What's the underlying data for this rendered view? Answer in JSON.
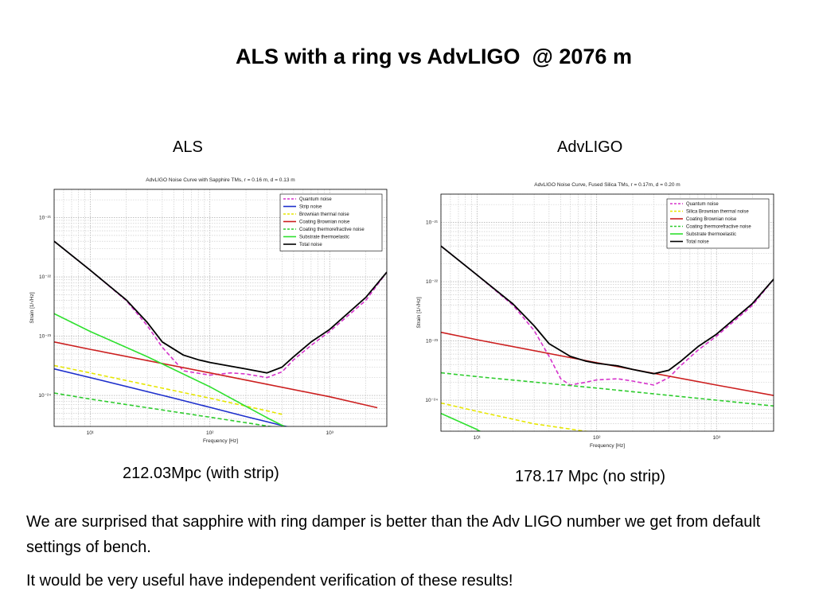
{
  "slide": {
    "title": "ALS with a ring vs AdvLIGO  @ 2076 m",
    "left_label": "ALS",
    "right_label": "AdvLIGO",
    "left_result": "212.03Mpc (with strip)",
    "right_result": "178.17 Mpc (no strip)",
    "paragraph_1": "We are surprised that sapphire with ring damper is better than the Adv LIGO number we get from default settings of bench.",
    "paragraph_2": "It would be very useful have independent verification of these results!"
  },
  "chart_data": [
    {
      "type": "line",
      "title": "AdvLIGO Noise Curve with Sapphire TMs, r = 0.16 m, d = 0.13 m",
      "xlabel": "Frequency [Hz]",
      "ylabel": "Strain [1/√Hz]",
      "xscale": "log",
      "yscale": "log",
      "xlim": [
        5,
        3000
      ],
      "ylim": [
        3e-25,
        3e-21
      ],
      "xticks": [
        "10¹",
        "10²",
        "10³"
      ],
      "yticks": [
        "10⁻²¹",
        "10⁻²²",
        "10⁻²³",
        "10⁻²⁴"
      ],
      "grid": true,
      "legend_position": "top-right",
      "series": [
        {
          "name": "Quantum noise",
          "color": "#d633cc",
          "dash": true,
          "x": [
            5,
            10,
            20,
            30,
            40,
            60,
            100,
            150,
            200,
            300,
            400,
            500,
            700,
            1000,
            2000,
            3000
          ],
          "y": [
            4e-22,
            1.3e-22,
            4e-23,
            1.5e-23,
            6.5e-24,
            2.6e-24,
            2.2e-24,
            2.4e-24,
            2.3e-24,
            2e-24,
            2.5e-24,
            4e-24,
            7e-24,
            1.2e-23,
            4e-23,
            1.2e-22
          ]
        },
        {
          "name": "Strip noise",
          "color": "#1c2ecc",
          "dash": false,
          "x": [
            5,
            10,
            50,
            100,
            200,
            300,
            400,
            500
          ],
          "y": [
            2.8e-24,
            2e-24,
            9e-25,
            6.3e-25,
            4.4e-25,
            3.6e-25,
            3.1e-25,
            2.8e-25
          ]
        },
        {
          "name": "Brownian thermal noise",
          "color": "#e6e600",
          "dash": true,
          "x": [
            5,
            10,
            100,
            300,
            400
          ],
          "y": [
            3.2e-24,
            2.4e-24,
            9e-25,
            5.5e-25,
            4.8e-25
          ]
        },
        {
          "name": "Coating Brownian noise",
          "color": "#cc1f1f",
          "dash": false,
          "x": [
            5,
            10,
            100,
            1000,
            2000,
            2500
          ],
          "y": [
            8e-24,
            6e-24,
            2.4e-24,
            9.5e-25,
            6.9e-25,
            6.2e-25
          ]
        },
        {
          "name": "Coating thermorefractive noise",
          "color": "#2ecc2e",
          "dash": true,
          "x": [
            5,
            10,
            100,
            1000
          ],
          "y": [
            1.1e-24,
            8.7e-25,
            4.3e-25,
            2.1e-25
          ]
        },
        {
          "name": "Substrate thermoelastic",
          "color": "#2ee02e",
          "dash": false,
          "x": [
            5,
            10,
            30,
            100,
            300,
            500
          ],
          "y": [
            2.4e-23,
            1.2e-23,
            4.5e-24,
            1.4e-24,
            4.2e-25,
            2.5e-25
          ]
        },
        {
          "name": "Total noise",
          "color": "#000000",
          "dash": false,
          "x": [
            5,
            10,
            20,
            30,
            40,
            60,
            80,
            100,
            150,
            200,
            300,
            400,
            500,
            700,
            1000,
            2000,
            3000
          ],
          "y": [
            4e-22,
            1.3e-22,
            4.1e-23,
            1.7e-23,
            8e-24,
            4.8e-24,
            4e-24,
            3.6e-24,
            3.1e-24,
            2.8e-24,
            2.4e-24,
            3e-24,
            4.5e-24,
            8e-24,
            1.3e-23,
            4.5e-23,
            1.2e-22
          ]
        }
      ]
    },
    {
      "type": "line",
      "title": "AdvLIGO Noise Curve, Fused Silica TMs, r = 0.17m, d = 0.20 m",
      "xlabel": "Frequency [Hz]",
      "ylabel": "Strain [1/√Hz]",
      "xscale": "log",
      "yscale": "log",
      "xlim": [
        5,
        3000
      ],
      "ylim": [
        3e-25,
        3e-21
      ],
      "xticks": [
        "10¹",
        "10²",
        "10³"
      ],
      "yticks": [
        "10⁻²¹",
        "10⁻²²",
        "10⁻²³",
        "10⁻²⁴"
      ],
      "grid": true,
      "legend_position": "top-right",
      "series": [
        {
          "name": "Quantum noise",
          "color": "#d633cc",
          "dash": true,
          "x": [
            5,
            10,
            20,
            30,
            40,
            50,
            60,
            80,
            100,
            150,
            200,
            300,
            400,
            500,
            700,
            1000,
            2000,
            3000
          ],
          "y": [
            4e-22,
            1.3e-22,
            4e-23,
            1.5e-23,
            5.5e-24,
            2.3e-24,
            1.8e-24,
            2e-24,
            2.2e-24,
            2.3e-24,
            2.1e-24,
            1.8e-24,
            2.4e-24,
            3.8e-24,
            7e-24,
            1.2e-23,
            4e-23,
            1.1e-22
          ]
        },
        {
          "name": "Silica Brownian thermal noise",
          "color": "#e6e600",
          "dash": true,
          "x": [
            5,
            10,
            30,
            100
          ],
          "y": [
            9e-25,
            6.5e-25,
            4e-25,
            2.8e-25
          ]
        },
        {
          "name": "Coating Brownian noise",
          "color": "#cc1f1f",
          "dash": false,
          "x": [
            5,
            10,
            100,
            1000,
            3000
          ],
          "y": [
            1.4e-23,
            1.05e-23,
            4.3e-24,
            1.8e-24,
            1.2e-24
          ]
        },
        {
          "name": "Coating thermorefractive noise",
          "color": "#2ecc2e",
          "dash": true,
          "x": [
            5,
            10,
            100,
            1000,
            3000
          ],
          "y": [
            2.9e-24,
            2.5e-24,
            1.6e-24,
            1e-24,
            8e-25
          ]
        },
        {
          "name": "Substrate thermoelastic",
          "color": "#2ee02e",
          "dash": false,
          "x": [
            5,
            10,
            15
          ],
          "y": [
            6e-25,
            3.2e-25,
            2e-25
          ]
        },
        {
          "name": "Total noise",
          "color": "#000000",
          "dash": false,
          "x": [
            5,
            10,
            20,
            30,
            40,
            60,
            80,
            100,
            150,
            200,
            300,
            400,
            500,
            700,
            1000,
            2000,
            3000
          ],
          "y": [
            4e-22,
            1.3e-22,
            4.2e-23,
            1.8e-23,
            9e-24,
            5.5e-24,
            4.6e-24,
            4.2e-24,
            3.8e-24,
            3.3e-24,
            2.8e-24,
            3.2e-24,
            4.5e-24,
            8e-24,
            1.3e-23,
            4.3e-23,
            1.1e-22
          ]
        }
      ]
    }
  ]
}
